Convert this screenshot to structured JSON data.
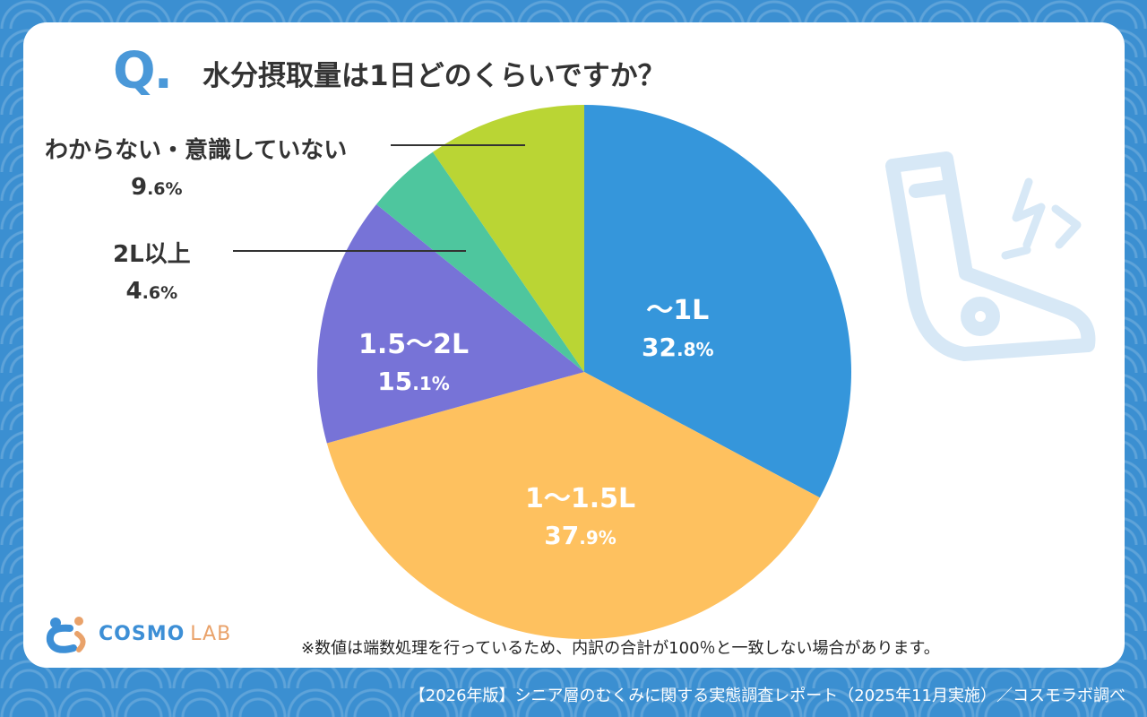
{
  "question": {
    "mark": "Q.",
    "text": "水分摂取量は1日どのくらいですか？"
  },
  "chart_data": {
    "type": "pie",
    "title": "水分摂取量は1日どのくらいですか？",
    "start_angle_deg": 0,
    "direction": "clockwise",
    "slices": [
      {
        "label": "〜1L",
        "value": 32.8,
        "pct_int": "32",
        "pct_dec": ".8%",
        "color": "#3596db",
        "label_position": "inside"
      },
      {
        "label": "1〜1.5L",
        "value": 37.9,
        "pct_int": "37",
        "pct_dec": ".9%",
        "color": "#fec15f",
        "label_position": "inside"
      },
      {
        "label": "1.5〜2L",
        "value": 15.1,
        "pct_int": "15",
        "pct_dec": ".1%",
        "color": "#7773d7",
        "label_position": "inside"
      },
      {
        "label": "2L以上",
        "value": 4.6,
        "pct_int": "4",
        "pct_dec": ".6%",
        "color": "#4ec69e",
        "label_position": "outside"
      },
      {
        "label": "わからない・意識していない",
        "value": 9.6,
        "pct_int": "9",
        "pct_dec": ".6%",
        "color": "#bad534",
        "label_position": "outside"
      }
    ]
  },
  "brand": {
    "logo_main": "COSMO",
    "logo_sub": "LAB"
  },
  "note": "※数値は端数処理を行っているため、内訳の合計が100％と一致しない場合があります。",
  "footer": "【2026年版】シニア層のむくみに関する実態調査レポート（2025年11月実施）／コスモラボ調べ",
  "colors": {
    "background": "#3b8fd1",
    "accent": "#4a98d8",
    "decoration": "#d7e8f6"
  },
  "icons": {
    "decoration": "swollen-foot-icon",
    "logo": "cosmo-lab-logo-icon"
  }
}
